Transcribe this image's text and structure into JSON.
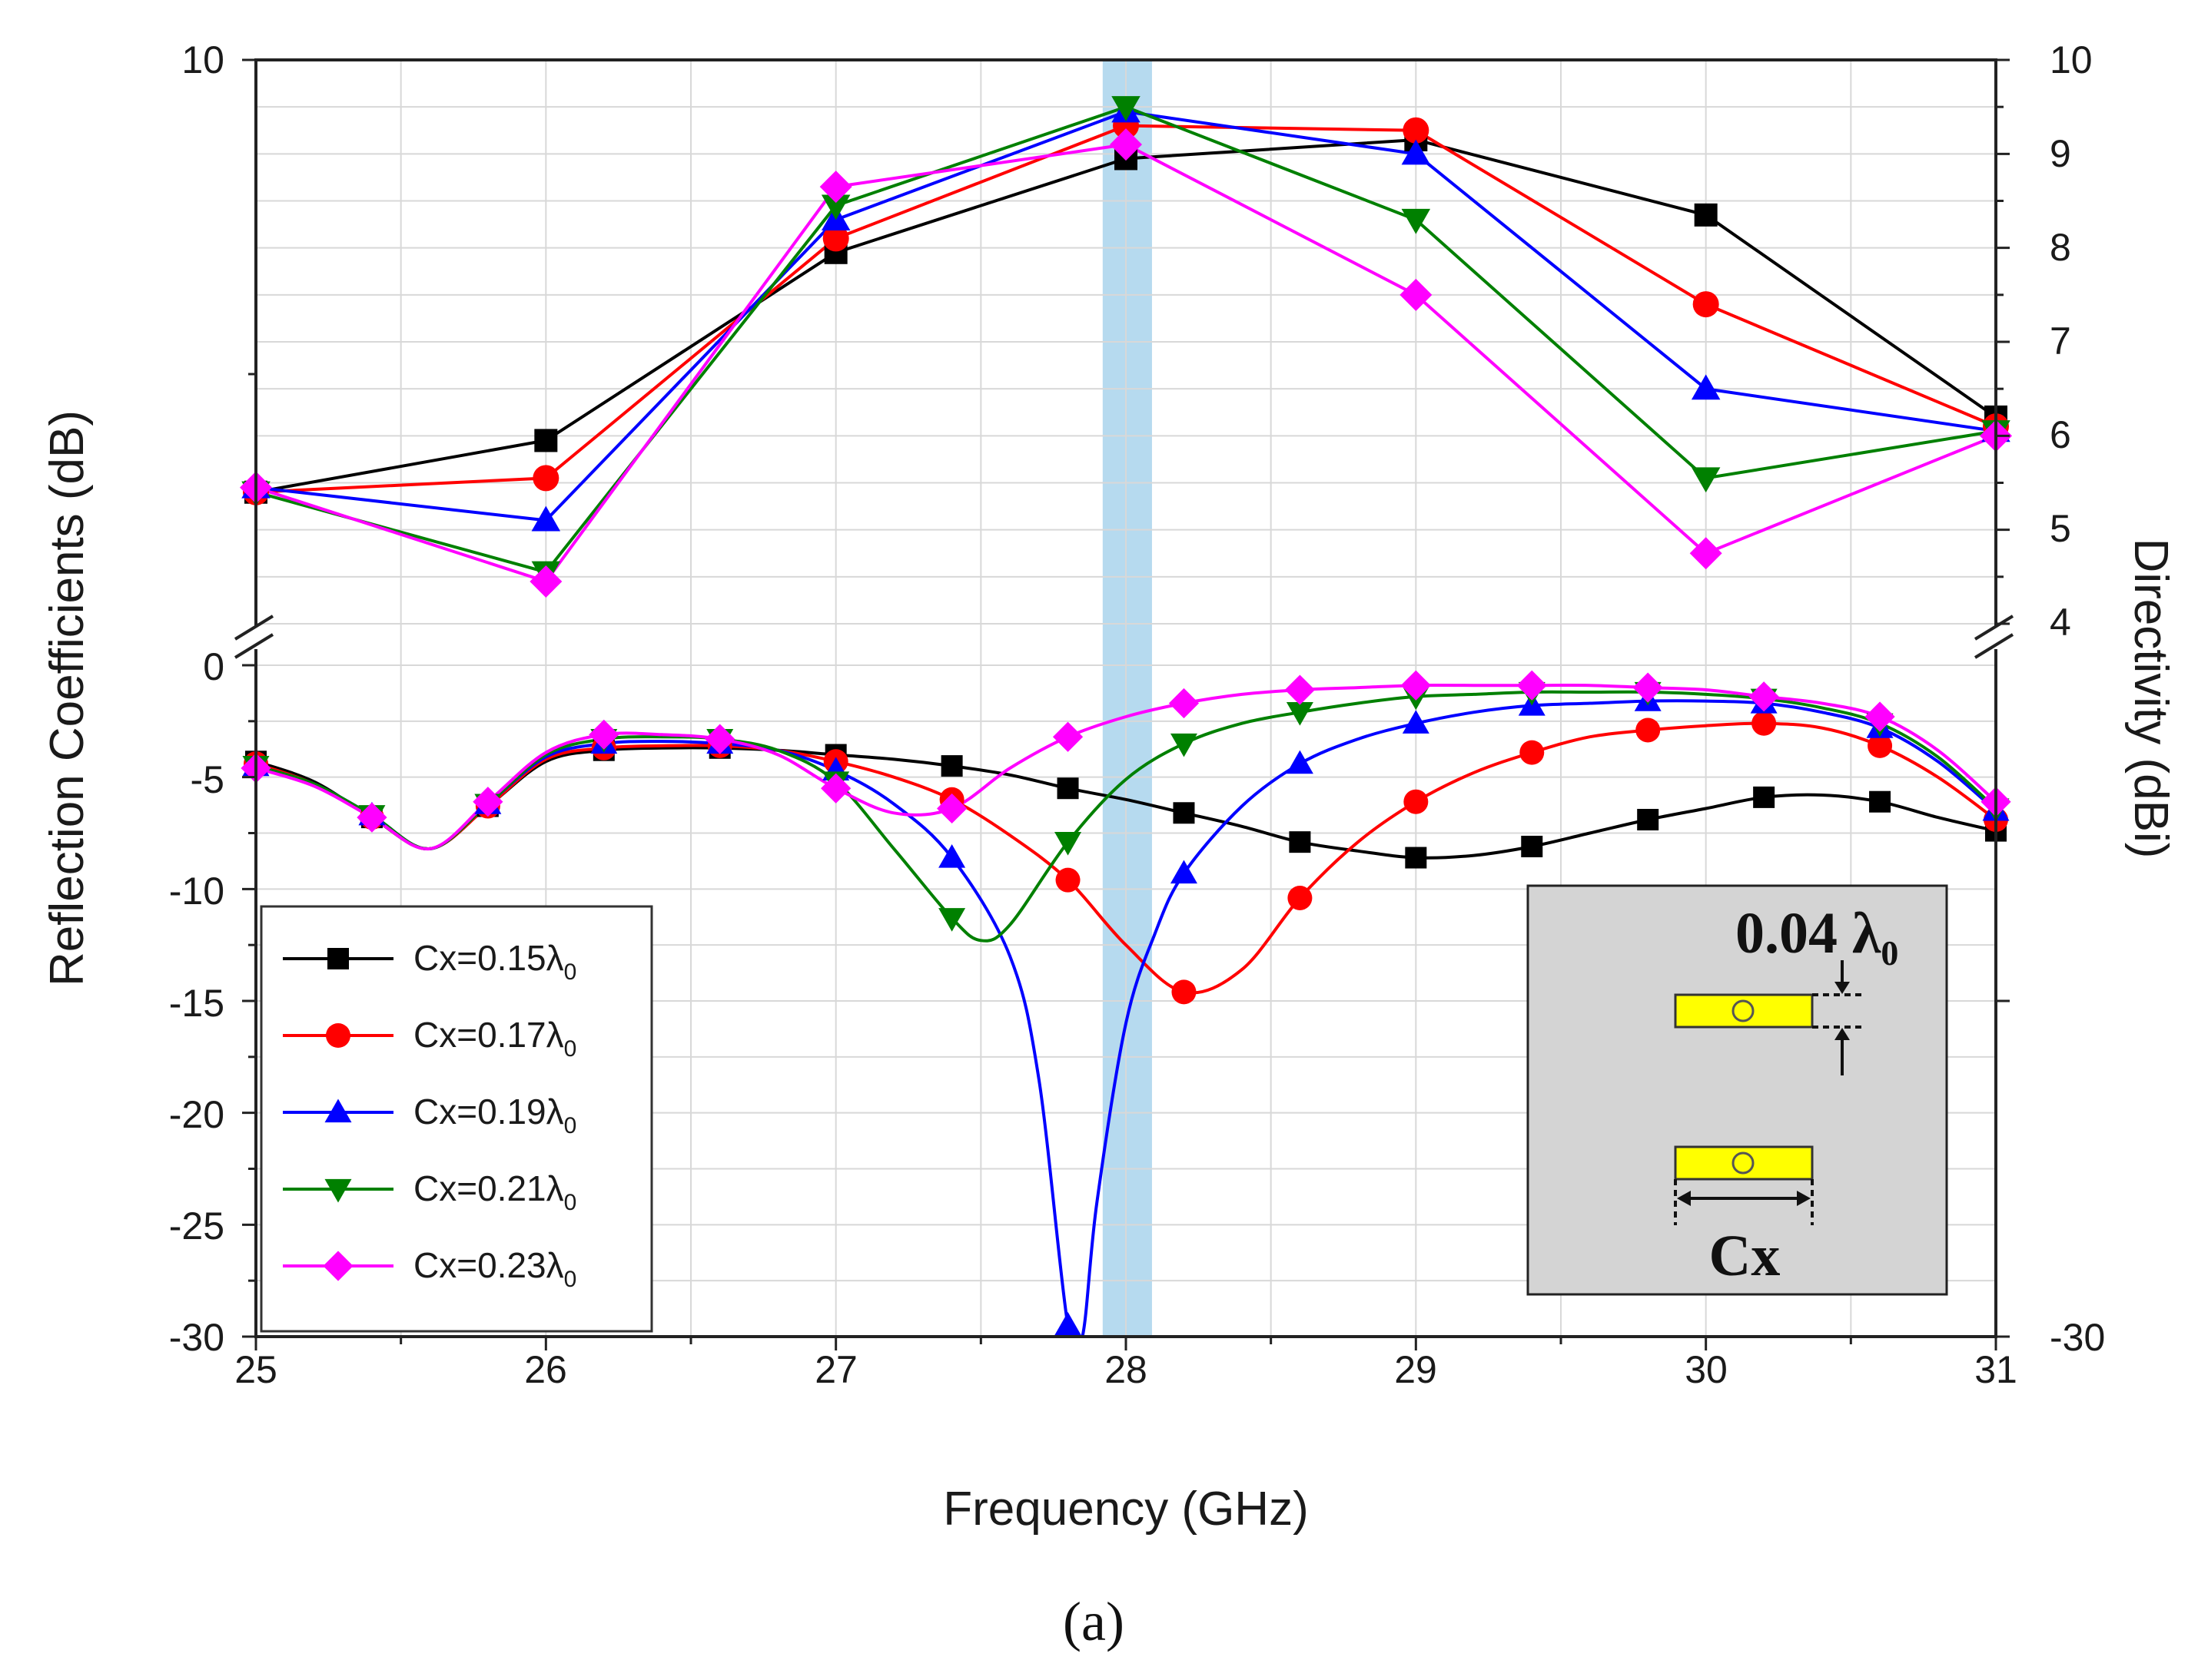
{
  "chart_data": {
    "type": "line",
    "caption": "(a)",
    "xlabel": "Frequency (GHz)",
    "ylabel_left": "Reflection Coefficients (dB)",
    "ylabel_right": "Directivity (dBi)",
    "x_range": [
      25,
      31
    ],
    "x_ticks": [
      "25",
      "26",
      "27",
      "28",
      "29",
      "30",
      "31"
    ],
    "left_axis_top_label": "10",
    "left_axis_ticks": [
      "0",
      "-5",
      "-10",
      "-15",
      "-20",
      "-25",
      "-30"
    ],
    "left_axis_range": [
      -30,
      0
    ],
    "right_axis_ticks": [
      "10",
      "9",
      "8",
      "7",
      "6",
      "5",
      "4"
    ],
    "right_axis_bottom_label": "-30",
    "right_axis_range": [
      4,
      10
    ],
    "highlight_band": {
      "from": 27.92,
      "to": 28.09,
      "color": "#a9d3ec"
    },
    "series": [
      {
        "name": "Cx=0.15λ0",
        "label_main": "Cx=0.15λ",
        "label_sub": "0",
        "color": "#000000",
        "marker": "square",
        "directivity": {
          "x": [
            25,
            26,
            27,
            28,
            29,
            30,
            31
          ],
          "y": [
            5.4,
            5.95,
            7.95,
            8.95,
            9.15,
            8.35,
            6.2
          ]
        },
        "reflection": {
          "x": [
            25,
            25.2,
            25.4,
            25.6,
            25.8,
            26,
            26.2,
            26.4,
            26.6,
            26.8,
            27,
            27.2,
            27.4,
            27.6,
            27.8,
            28,
            28.2,
            28.4,
            28.6,
            28.8,
            29,
            29.2,
            29.4,
            29.6,
            29.8,
            30,
            30.2,
            30.4,
            30.6,
            30.8,
            31
          ],
          "y": [
            -4.3,
            -5.2,
            -6.8,
            -8.2,
            -6.3,
            -4.3,
            -3.8,
            -3.7,
            -3.7,
            -3.8,
            -4,
            -4.2,
            -4.5,
            -4.9,
            -5.5,
            -6.0,
            -6.6,
            -7.2,
            -7.9,
            -8.3,
            -8.6,
            -8.5,
            -8.1,
            -7.5,
            -6.9,
            -6.4,
            -5.9,
            -5.8,
            -6.1,
            -6.8,
            -7.4
          ],
          "marker_x": [
            25,
            25.4,
            25.8,
            26.2,
            26.6,
            27,
            27.4,
            27.8,
            28.2,
            28.6,
            29,
            29.4,
            29.8,
            30.2,
            30.6,
            31
          ],
          "marker_y": [
            -4.3,
            -6.8,
            -6.3,
            -3.8,
            -3.7,
            -4,
            -4.5,
            -5.5,
            -6.6,
            -7.9,
            -8.6,
            -8.1,
            -6.9,
            -5.9,
            -6.1,
            -7.4
          ]
        }
      },
      {
        "name": "Cx=0.17λ0",
        "label_main": "Cx=0.17λ",
        "label_sub": "0",
        "color": "#ff0000",
        "marker": "circle",
        "directivity": {
          "x": [
            25,
            26,
            27,
            28,
            29,
            30,
            31
          ],
          "y": [
            5.4,
            5.55,
            8.1,
            9.3,
            9.25,
            7.4,
            6.1
          ]
        },
        "reflection": {
          "x": [
            25,
            25.2,
            25.4,
            25.6,
            25.8,
            26,
            26.2,
            26.4,
            26.6,
            26.8,
            27,
            27.2,
            27.4,
            27.6,
            27.8,
            28,
            28.2,
            28.4,
            28.6,
            28.8,
            29,
            29.2,
            29.4,
            29.6,
            29.8,
            30,
            30.2,
            30.4,
            30.6,
            30.8,
            31
          ],
          "y": [
            -4.4,
            -5.3,
            -6.8,
            -8.2,
            -6.3,
            -4.2,
            -3.7,
            -3.6,
            -3.6,
            -3.8,
            -4.3,
            -5,
            -6,
            -7.6,
            -9.6,
            -12.5,
            -14.6,
            -13.6,
            -10.4,
            -7.9,
            -6.1,
            -4.8,
            -3.9,
            -3.2,
            -2.9,
            -2.7,
            -2.6,
            -2.8,
            -3.6,
            -5,
            -6.9
          ],
          "marker_x": [
            25,
            25.4,
            25.8,
            26.2,
            26.6,
            27,
            27.4,
            27.8,
            28.2,
            28.6,
            29,
            29.4,
            29.8,
            30.2,
            30.6,
            31
          ],
          "marker_y": [
            -4.4,
            -6.8,
            -6.3,
            -3.7,
            -3.6,
            -4.3,
            -6,
            -9.6,
            -14.6,
            -10.4,
            -6.1,
            -3.9,
            -2.9,
            -2.6,
            -3.6,
            -6.9
          ]
        }
      },
      {
        "name": "Cx=0.19λ0",
        "label_main": "Cx=0.19λ",
        "label_sub": "0",
        "color": "#0000ff",
        "marker": "triangle-up",
        "directivity": {
          "x": [
            25,
            26,
            27,
            28,
            29,
            30,
            31
          ],
          "y": [
            5.45,
            5.1,
            8.3,
            9.45,
            9.0,
            6.5,
            6.05
          ]
        },
        "reflection": {
          "x": [
            25,
            25.2,
            25.4,
            25.6,
            25.8,
            26,
            26.2,
            26.4,
            26.6,
            26.8,
            27,
            27.2,
            27.4,
            27.6,
            27.7,
            27.8,
            27.85,
            27.9,
            28,
            28.1,
            28.2,
            28.4,
            28.6,
            28.8,
            29,
            29.2,
            29.4,
            29.6,
            29.8,
            30,
            30.2,
            30.4,
            30.6,
            30.8,
            31
          ],
          "y": [
            -4.5,
            -5.3,
            -6.7,
            -8.2,
            -6.2,
            -4.1,
            -3.5,
            -3.4,
            -3.5,
            -3.8,
            -4.7,
            -6.2,
            -8.6,
            -13,
            -18.5,
            -29.5,
            -30,
            -24,
            -16,
            -12,
            -9.3,
            -6.3,
            -4.4,
            -3.3,
            -2.6,
            -2.1,
            -1.8,
            -1.7,
            -1.6,
            -1.6,
            -1.7,
            -2.1,
            -2.8,
            -4.3,
            -6.5
          ],
          "marker_x": [
            25,
            25.4,
            25.8,
            26.2,
            26.6,
            27,
            27.4,
            27.8,
            28.2,
            28.6,
            29,
            29.4,
            29.8,
            30.2,
            30.6,
            31
          ],
          "marker_y": [
            -4.5,
            -6.7,
            -6.2,
            -3.5,
            -3.5,
            -4.7,
            -8.6,
            -29.5,
            -9.3,
            -4.4,
            -2.6,
            -1.8,
            -1.6,
            -1.7,
            -2.8,
            -6.5
          ]
        }
      },
      {
        "name": "Cx=0.21λ0",
        "label_main": "Cx=0.21λ",
        "label_sub": "0",
        "color": "#008000",
        "marker": "triangle-down",
        "directivity": {
          "x": [
            25,
            26,
            27,
            28,
            29,
            30,
            31
          ],
          "y": [
            5.4,
            4.55,
            8.45,
            9.5,
            8.3,
            5.55,
            6.05
          ]
        },
        "reflection": {
          "x": [
            25,
            25.2,
            25.4,
            25.6,
            25.8,
            26,
            26.2,
            26.4,
            26.6,
            26.8,
            27,
            27.2,
            27.4,
            27.5,
            27.6,
            27.8,
            28,
            28.2,
            28.4,
            28.6,
            28.8,
            29,
            29.2,
            29.4,
            29.6,
            29.8,
            30,
            30.2,
            30.4,
            30.6,
            30.8,
            31
          ],
          "y": [
            -4.5,
            -5.3,
            -6.7,
            -8.2,
            -6.2,
            -4.0,
            -3.3,
            -3.2,
            -3.3,
            -3.8,
            -5.2,
            -8.2,
            -11.3,
            -12.3,
            -11.6,
            -7.9,
            -5.1,
            -3.5,
            -2.6,
            -2.1,
            -1.7,
            -1.4,
            -1.3,
            -1.2,
            -1.2,
            -1.2,
            -1.3,
            -1.5,
            -1.9,
            -2.6,
            -4.1,
            -6.4
          ],
          "marker_x": [
            25,
            25.4,
            25.8,
            26.2,
            26.6,
            27,
            27.4,
            27.8,
            28.2,
            28.6,
            29,
            29.4,
            29.8,
            30.2,
            30.6,
            31
          ],
          "marker_y": [
            -4.5,
            -6.7,
            -6.2,
            -3.3,
            -3.3,
            -5.2,
            -11.3,
            -7.9,
            -3.5,
            -2.1,
            -1.4,
            -1.2,
            -1.2,
            -1.5,
            -2.6,
            -6.4
          ]
        }
      },
      {
        "name": "Cx=0.23λ0",
        "label_main": "Cx=0.23λ",
        "label_sub": "0",
        "color": "#ff00ff",
        "marker": "diamond",
        "directivity": {
          "x": [
            25,
            26,
            27,
            28,
            29,
            30,
            31
          ],
          "y": [
            5.45,
            4.45,
            8.65,
            9.1,
            7.5,
            4.75,
            6.0
          ]
        },
        "reflection": {
          "x": [
            25,
            25.2,
            25.4,
            25.6,
            25.8,
            26,
            26.2,
            26.4,
            26.6,
            26.8,
            27,
            27.2,
            27.4,
            27.6,
            27.8,
            28,
            28.2,
            28.4,
            28.6,
            28.8,
            29,
            29.2,
            29.4,
            29.6,
            29.8,
            30,
            30.2,
            30.4,
            30.6,
            30.8,
            31
          ],
          "y": [
            -4.6,
            -5.4,
            -6.8,
            -8.2,
            -6.1,
            -3.9,
            -3.1,
            -3.1,
            -3.3,
            -4.0,
            -5.5,
            -6.6,
            -6.4,
            -4.6,
            -3.2,
            -2.3,
            -1.7,
            -1.3,
            -1.1,
            -1.0,
            -0.9,
            -0.9,
            -0.9,
            -0.9,
            -1.0,
            -1.1,
            -1.4,
            -1.7,
            -2.3,
            -3.8,
            -6.1
          ],
          "marker_x": [
            25,
            25.4,
            25.8,
            26.2,
            26.6,
            27,
            27.4,
            27.8,
            28.2,
            28.6,
            29,
            29.4,
            29.8,
            30.2,
            30.6,
            31
          ],
          "marker_y": [
            -4.6,
            -6.8,
            -6.1,
            -3.1,
            -3.3,
            -5.5,
            -6.4,
            -3.2,
            -1.7,
            -1.1,
            -0.9,
            -0.9,
            -1.0,
            -1.4,
            -2.3,
            -6.1
          ]
        }
      }
    ],
    "inset": {
      "top_label_main": "0.04 λ",
      "top_label_sub": "0",
      "bottom_label": "Cx"
    }
  }
}
